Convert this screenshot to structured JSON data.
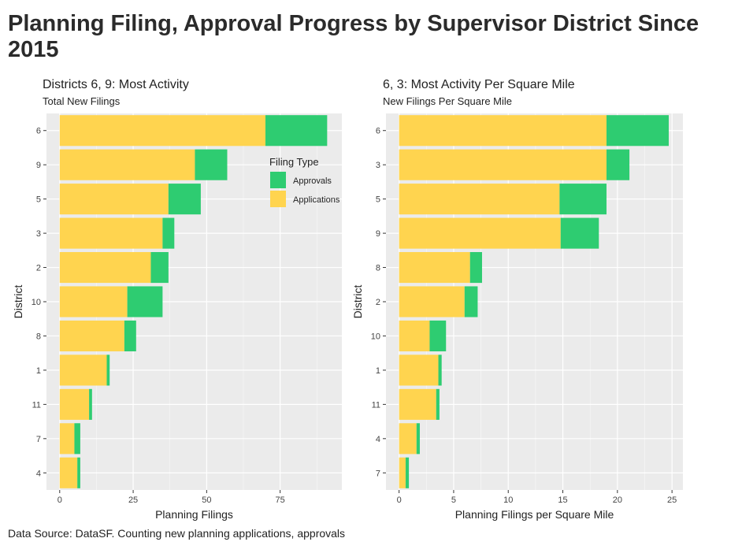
{
  "title": "Planning Filing, Approval Progress by Supervisor District Since 2015",
  "caption": "Data Source: DataSF. Counting new planning applications, approvals",
  "colors": {
    "approvals": "#2ecc71",
    "applications": "#ffd44f",
    "panel_bg": "#ebebeb",
    "grid": "#ffffff",
    "text": "#222222",
    "tick_text": "#444444"
  },
  "legend": {
    "title": "Filing Type",
    "items": [
      {
        "label": "Approvals",
        "color": "#2ecc71"
      },
      {
        "label": "Applications",
        "color": "#ffd44f"
      }
    ]
  },
  "chart_data": [
    {
      "type": "bar",
      "orientation": "horizontal",
      "stacked": true,
      "title": "Districts 6, 9: Most Activity",
      "subtitle": "Total New Filings",
      "xlabel": "Planning Filings",
      "ylabel": "District",
      "xlim": [
        -4.5,
        96
      ],
      "xticks": [
        0,
        25,
        50,
        75
      ],
      "grid": true,
      "legend_position": "right (inside panel, top)",
      "categories": [
        "6",
        "9",
        "5",
        "3",
        "2",
        "10",
        "8",
        "1",
        "11",
        "7",
        "4"
      ],
      "series": [
        {
          "name": "Applications",
          "values": [
            70,
            46,
            37,
            35,
            31,
            23,
            22,
            16,
            10,
            5,
            6
          ]
        },
        {
          "name": "Approvals",
          "values": [
            21,
            11,
            11,
            4,
            6,
            12,
            4,
            1,
            1,
            2,
            1
          ]
        }
      ]
    },
    {
      "type": "bar",
      "orientation": "horizontal",
      "stacked": true,
      "title": "6, 3: Most Activity Per Square Mile",
      "subtitle": "New Filings Per Square Mile",
      "xlabel": "Planning Filings per Square Mile",
      "ylabel": "District",
      "xlim": [
        -1.2,
        26
      ],
      "xticks": [
        0,
        5,
        10,
        15,
        20,
        25
      ],
      "grid": true,
      "categories": [
        "6",
        "3",
        "5",
        "9",
        "8",
        "2",
        "10",
        "1",
        "11",
        "4",
        "7"
      ],
      "series": [
        {
          "name": "Applications",
          "values": [
            19,
            19,
            14.7,
            14.8,
            6.5,
            6.0,
            2.8,
            3.6,
            3.4,
            1.6,
            0.6
          ]
        },
        {
          "name": "Approvals",
          "values": [
            5.7,
            2.1,
            4.3,
            3.5,
            1.1,
            1.2,
            1.5,
            0.3,
            0.3,
            0.3,
            0.3
          ]
        }
      ]
    }
  ]
}
